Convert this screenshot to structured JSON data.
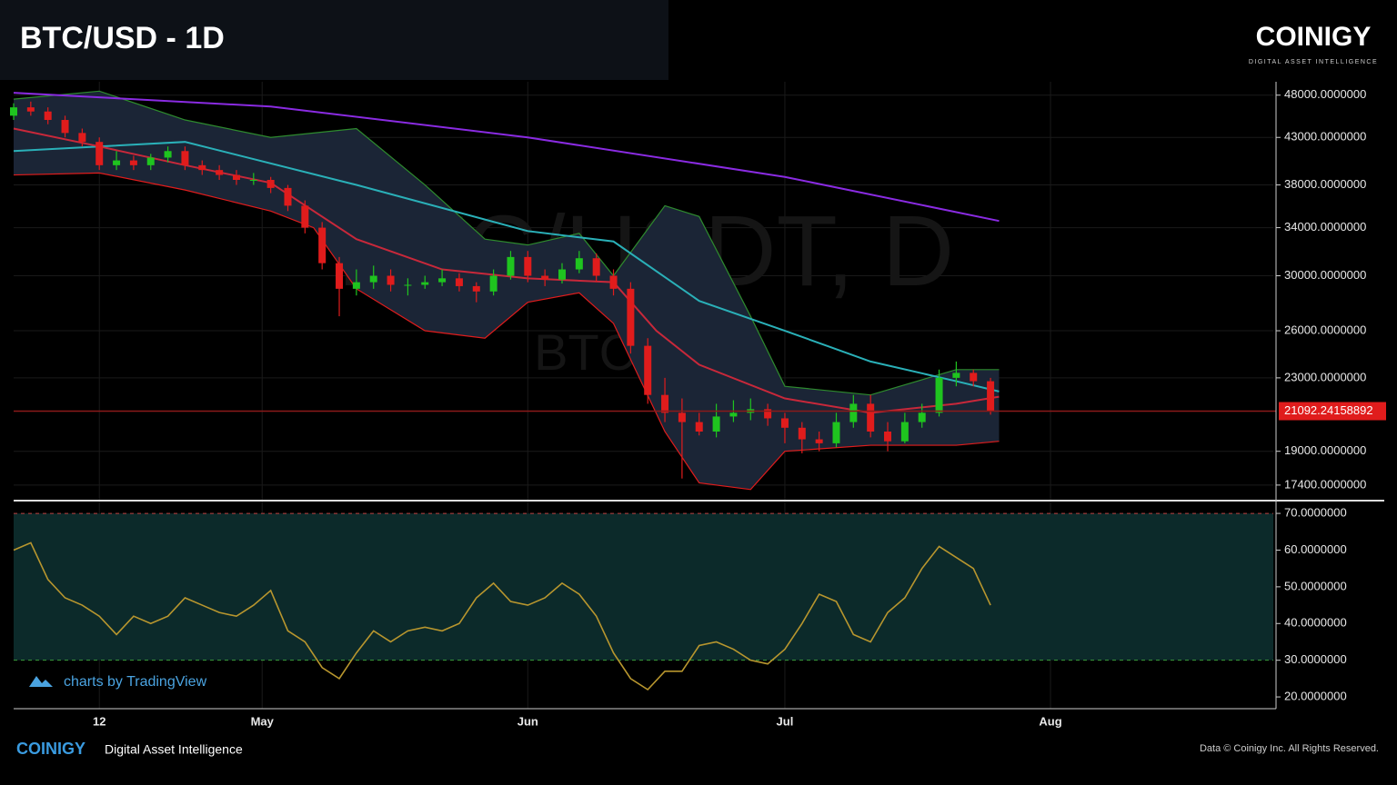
{
  "header": {
    "title": "BTC/USD - 1D",
    "brand": "COINIGY",
    "tagline": "DIGITAL ASSET INTELLIGENCE"
  },
  "footer": {
    "brand": "COINIGY",
    "tagline": "Digital Asset Intelligence",
    "copyright": "Data © Coinigy Inc.  All Rights Reserved.",
    "credit": "charts by TradingView"
  },
  "chart_data": [
    {
      "type": "candlestick",
      "watermark": "BTC/USDT, D",
      "watermark_sub": "BTC/USD",
      "log_scale": true,
      "ylim": [
        16750,
        49700
      ],
      "xlim": [
        0,
        147
      ],
      "yticks": [
        {
          "value": 48000,
          "label": "48000.0000000"
        },
        {
          "value": 43000,
          "label": "43000.0000000"
        },
        {
          "value": 38000,
          "label": "38000.0000000"
        },
        {
          "value": 34000,
          "label": "34000.0000000"
        },
        {
          "value": 30000,
          "label": "30000.0000000"
        },
        {
          "value": 26000,
          "label": "26000.0000000"
        },
        {
          "value": 23000,
          "label": "23000.0000000"
        },
        {
          "value": 19000,
          "label": "19000.0000000"
        },
        {
          "value": 17400,
          "label": "17400.0000000"
        }
      ],
      "up_color": "#1fc41f",
      "down_color": "#e01c1c",
      "last_price": 21092.24158892,
      "last_price_color": "#e01c1c",
      "x": [
        0,
        2,
        4,
        6,
        8,
        10,
        12,
        14,
        16,
        18,
        20,
        22,
        24,
        26,
        28,
        30,
        32,
        34,
        36,
        38,
        40,
        42,
        44,
        46,
        48,
        50,
        52,
        54,
        56,
        58,
        60,
        62,
        64,
        66,
        68,
        70,
        72,
        74,
        76,
        78,
        80,
        82,
        84,
        86,
        88,
        90,
        92,
        94,
        96,
        98,
        100,
        102,
        104,
        106,
        108,
        110,
        112,
        114
      ],
      "open": [
        45500,
        46500,
        46000,
        45000,
        43500,
        42500,
        40000,
        40500,
        40000,
        40800,
        41500,
        40000,
        39500,
        39000,
        38500,
        38500,
        37700,
        36000,
        34000,
        31000,
        29000,
        29500,
        30000,
        29300,
        29300,
        29500,
        29800,
        29200,
        28800,
        30000,
        31500,
        30000,
        29700,
        30500,
        31400,
        30000,
        29000,
        25000,
        22000,
        21000,
        20500,
        20000,
        20800,
        21000,
        21200,
        20700,
        20200,
        19600,
        19400,
        20500,
        21500,
        20000,
        19500,
        20500,
        21000,
        23000,
        23300,
        22800
      ],
      "high": [
        47000,
        47200,
        46500,
        45500,
        44000,
        43000,
        41500,
        41000,
        41200,
        42000,
        42000,
        40500,
        40000,
        39500,
        39200,
        38800,
        38000,
        36500,
        34500,
        31500,
        30500,
        30800,
        30500,
        29800,
        30000,
        30500,
        30200,
        29500,
        30500,
        32000,
        32000,
        30500,
        31000,
        32000,
        31800,
        30500,
        29500,
        25500,
        23000,
        21800,
        21000,
        21500,
        21700,
        21800,
        21500,
        21000,
        20500,
        20000,
        21000,
        22000,
        22000,
        20500,
        21000,
        21500,
        23500,
        24000,
        23500,
        23000
      ],
      "low": [
        45000,
        45500,
        44500,
        43000,
        42000,
        39500,
        39500,
        39500,
        39500,
        40300,
        39500,
        39000,
        38500,
        38000,
        38000,
        37200,
        35500,
        33500,
        30500,
        27000,
        28500,
        29000,
        28800,
        28500,
        29000,
        29200,
        28800,
        28000,
        28500,
        29700,
        29500,
        29200,
        29400,
        30200,
        29500,
        28500,
        24500,
        21500,
        20500,
        17700,
        19800,
        19700,
        20500,
        20600,
        20300,
        19400,
        18900,
        19000,
        19200,
        20200,
        19700,
        19000,
        19400,
        20200,
        20800,
        22500,
        22500,
        20900
      ],
      "close": [
        46500,
        46000,
        45000,
        43500,
        42500,
        40000,
        40500,
        40000,
        40800,
        41500,
        40000,
        39500,
        39000,
        38500,
        38500,
        37700,
        36000,
        34000,
        31000,
        29000,
        29500,
        30000,
        29300,
        29300,
        29500,
        29800,
        29200,
        28800,
        30000,
        31500,
        30000,
        29700,
        30500,
        31400,
        30000,
        29000,
        25000,
        22000,
        21000,
        20500,
        20000,
        20800,
        21000,
        21200,
        20700,
        20200,
        19600,
        19400,
        20500,
        21500,
        20000,
        19500,
        20500,
        21000,
        23000,
        23300,
        22800,
        21100
      ],
      "bands": {
        "color": "#1b2536",
        "edge_color": "#2e8b2e",
        "x": [
          0,
          10,
          20,
          30,
          35,
          40,
          48,
          55,
          60,
          66,
          70,
          76,
          80,
          86,
          90,
          100,
          110,
          115
        ],
        "upper": [
          47500,
          48500,
          45000,
          43000,
          43500,
          44000,
          38000,
          33000,
          32500,
          33500,
          30000,
          36000,
          35000,
          27000,
          22500,
          22000,
          23500,
          23500
        ],
        "lower": [
          39000,
          39200,
          37500,
          35500,
          34000,
          29000,
          26000,
          25500,
          28000,
          28700,
          26500,
          20000,
          17500,
          17200,
          19000,
          19300,
          19300,
          19500
        ]
      },
      "series": [
        {
          "color": "#8a2be2",
          "x": [
            0,
            30,
            60,
            90,
            115
          ],
          "values": [
            48300,
            46600,
            43000,
            38800,
            34600
          ]
        },
        {
          "color": "#2ab0b8",
          "x": [
            0,
            20,
            40,
            60,
            70,
            80,
            90,
            100,
            110,
            115
          ],
          "values": [
            41500,
            42500,
            38000,
            33700,
            32800,
            28100,
            26000,
            24000,
            22800,
            22200
          ]
        },
        {
          "color": "#c8283a",
          "x": [
            0,
            10,
            20,
            30,
            40,
            50,
            60,
            70,
            75,
            80,
            90,
            100,
            110,
            115
          ],
          "values": [
            44000,
            42000,
            40000,
            38200,
            33000,
            30500,
            29800,
            29500,
            26000,
            23800,
            21800,
            21000,
            21500,
            21900
          ]
        }
      ]
    },
    {
      "type": "line",
      "ylim": [
        16.8,
        72
      ],
      "xlim": [
        0,
        147
      ],
      "zone": [
        30,
        70
      ],
      "zone_color": "#0c2a2a",
      "yticks": [
        {
          "value": 70,
          "label": "70.0000000"
        },
        {
          "value": 60,
          "label": "60.0000000"
        },
        {
          "value": 50,
          "label": "50.0000000"
        },
        {
          "value": 40,
          "label": "40.0000000"
        },
        {
          "value": 30,
          "label": "30.0000000"
        },
        {
          "value": 20,
          "label": "20.0000000"
        }
      ],
      "xticks": [
        {
          "value": 10,
          "label": "12"
        },
        {
          "value": 29,
          "label": "May"
        },
        {
          "value": 60,
          "label": "Jun"
        },
        {
          "value": 90,
          "label": "Jul"
        },
        {
          "value": 121,
          "label": "Aug"
        }
      ],
      "color": "#b8962e",
      "x": [
        0,
        2,
        4,
        6,
        8,
        10,
        12,
        14,
        16,
        18,
        20,
        22,
        24,
        26,
        28,
        30,
        32,
        34,
        36,
        38,
        40,
        42,
        44,
        46,
        48,
        50,
        52,
        54,
        56,
        58,
        60,
        62,
        64,
        66,
        68,
        70,
        72,
        74,
        76,
        78,
        80,
        82,
        84,
        86,
        88,
        90,
        92,
        94,
        96,
        98,
        100,
        102,
        104,
        106,
        108,
        110,
        112,
        114
      ],
      "values": [
        60,
        62,
        52,
        47,
        45,
        42,
        37,
        42,
        40,
        42,
        47,
        45,
        43,
        42,
        45,
        49,
        38,
        35,
        28,
        25,
        32,
        38,
        35,
        38,
        39,
        38,
        40,
        47,
        51,
        46,
        45,
        47,
        51,
        48,
        42,
        32,
        25,
        22,
        27,
        27,
        34,
        35,
        33,
        30,
        29,
        33,
        40,
        48,
        46,
        37,
        35,
        43,
        47,
        55,
        61,
        58,
        55,
        45
      ]
    }
  ]
}
